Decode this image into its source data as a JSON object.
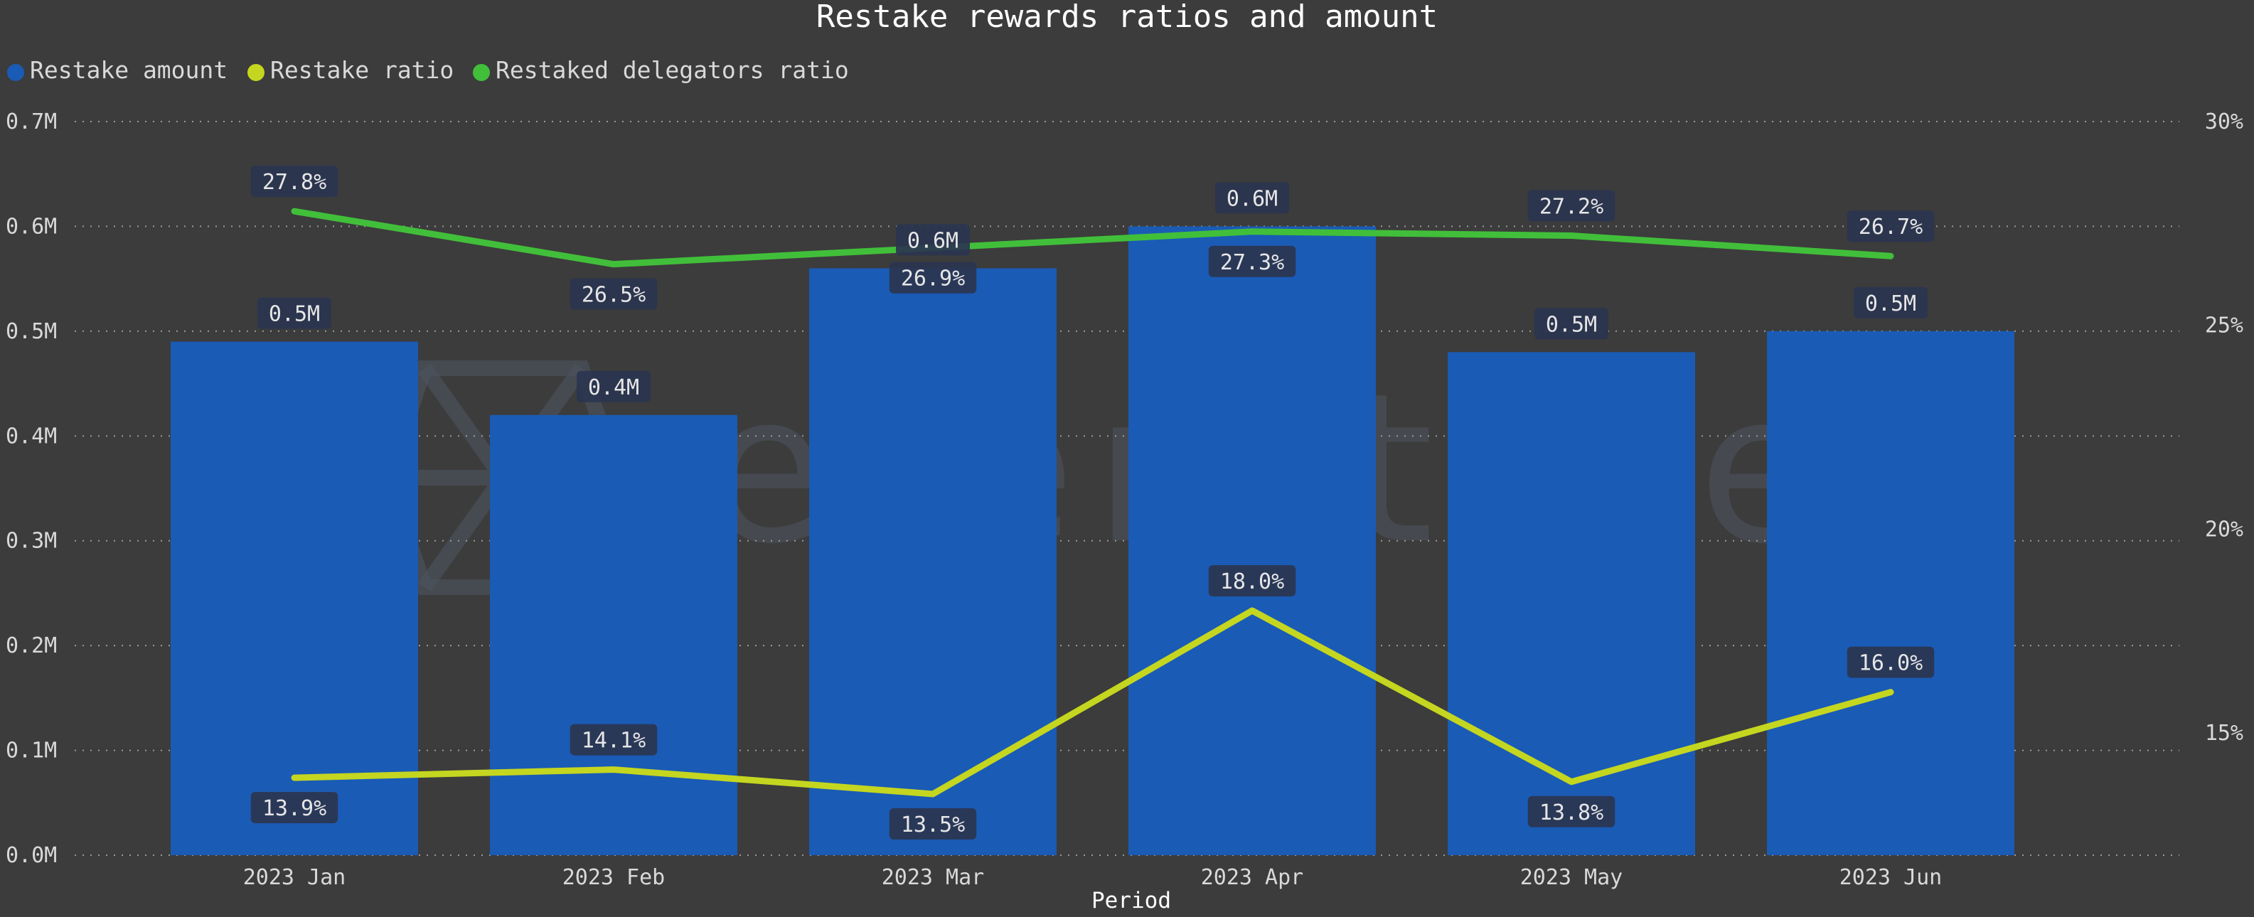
{
  "colors": {
    "background": "#3c3c3c",
    "bar": "#1a5bb5",
    "restake_ratio_line": "#c4d61f",
    "delegators_ratio_line": "#41bf3a",
    "label_box": "#2b3550"
  },
  "watermark": {
    "text": "everstake",
    "icon": "everstake-logo-icon"
  },
  "chart_data": {
    "type": "bar",
    "title": "Restake rewards ratios and amount",
    "xlabel": "Period",
    "ylabel": "",
    "y2label": "",
    "categories": [
      "2023 Jan",
      "2023 Feb",
      "2023 Mar",
      "2023 Apr",
      "2023 May",
      "2023 Jun"
    ],
    "ylim": [
      0,
      0.7
    ],
    "y_ticks": [
      "0.0M",
      "0.1M",
      "0.2M",
      "0.3M",
      "0.4M",
      "0.5M",
      "0.6M",
      "0.7M"
    ],
    "y2lim": [
      12,
      30
    ],
    "y2_ticks": [
      "15%",
      "20%",
      "25%",
      "30%"
    ],
    "grid": true,
    "legend_position": "top-left",
    "series": [
      {
        "name": "Restake amount",
        "type": "bar",
        "axis": "left",
        "values": [
          0.49,
          0.42,
          0.56,
          0.6,
          0.48,
          0.5
        ],
        "labels": [
          "0.5M",
          "0.4M",
          "0.6M",
          "0.6M",
          "0.5M",
          "0.5M"
        ]
      },
      {
        "name": "Restake ratio",
        "type": "line",
        "axis": "right",
        "values": [
          13.9,
          14.1,
          13.5,
          18.0,
          13.8,
          16.0
        ],
        "labels": [
          "13.9%",
          "14.1%",
          "13.5%",
          "18.0%",
          "13.8%",
          "16.0%"
        ]
      },
      {
        "name": "Restaked delegators ratio",
        "type": "line",
        "axis": "right",
        "values": [
          27.8,
          26.5,
          26.9,
          27.3,
          27.2,
          26.7
        ],
        "labels": [
          "27.8%",
          "26.5%",
          "26.9%",
          "27.3%",
          "27.2%",
          "26.7%"
        ]
      }
    ]
  }
}
